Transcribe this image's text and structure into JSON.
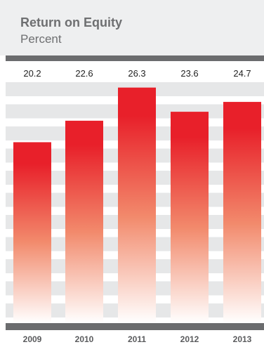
{
  "chart_data": {
    "type": "bar",
    "title": "Return on Equity",
    "subtitle": "Percent",
    "categories": [
      "2009",
      "2010",
      "2011",
      "2012",
      "2013"
    ],
    "values": [
      20.2,
      22.6,
      26.3,
      23.6,
      24.7
    ],
    "ylim": [
      0,
      30
    ],
    "grid": true,
    "colors": {
      "bar_top": "#e8202a",
      "bar_mid": "#f28a6c",
      "bar_bottom": "#ffffff",
      "grid_band": "#e6e7e8",
      "axis_bar": "#6b6c6e",
      "header_bg": "#eeeff0",
      "title": "#6e6f71"
    }
  }
}
